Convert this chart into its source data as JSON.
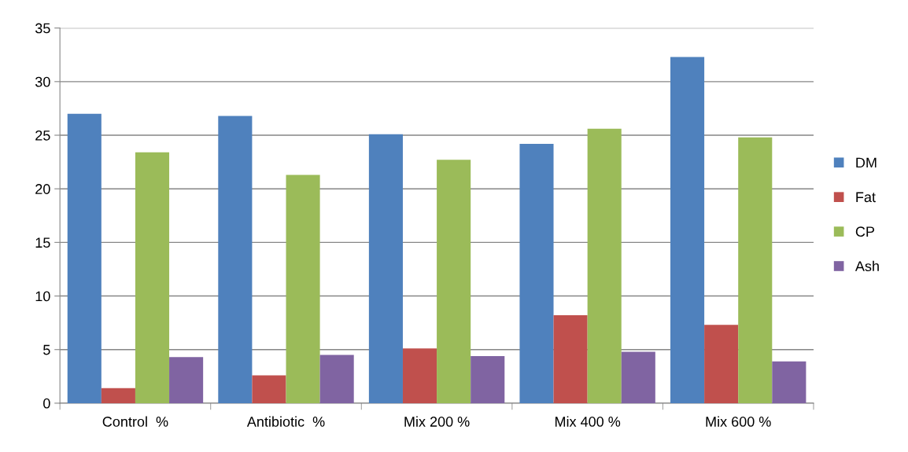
{
  "chart_data": {
    "type": "bar",
    "categories": [
      "Control  %",
      "Antibiotic  %",
      "Mix 200 %",
      "Mix 400 %",
      "Mix 600 %"
    ],
    "series": [
      {
        "name": "DM",
        "color": "#4f81bd",
        "values": [
          27.0,
          26.8,
          25.1,
          24.2,
          32.3
        ]
      },
      {
        "name": "Fat",
        "color": "#c0504d",
        "values": [
          1.4,
          2.6,
          5.1,
          8.2,
          7.3
        ]
      },
      {
        "name": "CP",
        "color": "#9bbb59",
        "values": [
          23.4,
          21.3,
          22.7,
          25.6,
          24.8
        ]
      },
      {
        "name": "Ash",
        "color": "#8064a2",
        "values": [
          4.3,
          4.5,
          4.4,
          4.8,
          3.9
        ]
      }
    ],
    "ylim": [
      0,
      35
    ],
    "yticks": [
      0,
      5,
      10,
      15,
      20,
      25,
      30,
      35
    ],
    "grid": "y",
    "legend": "right"
  }
}
